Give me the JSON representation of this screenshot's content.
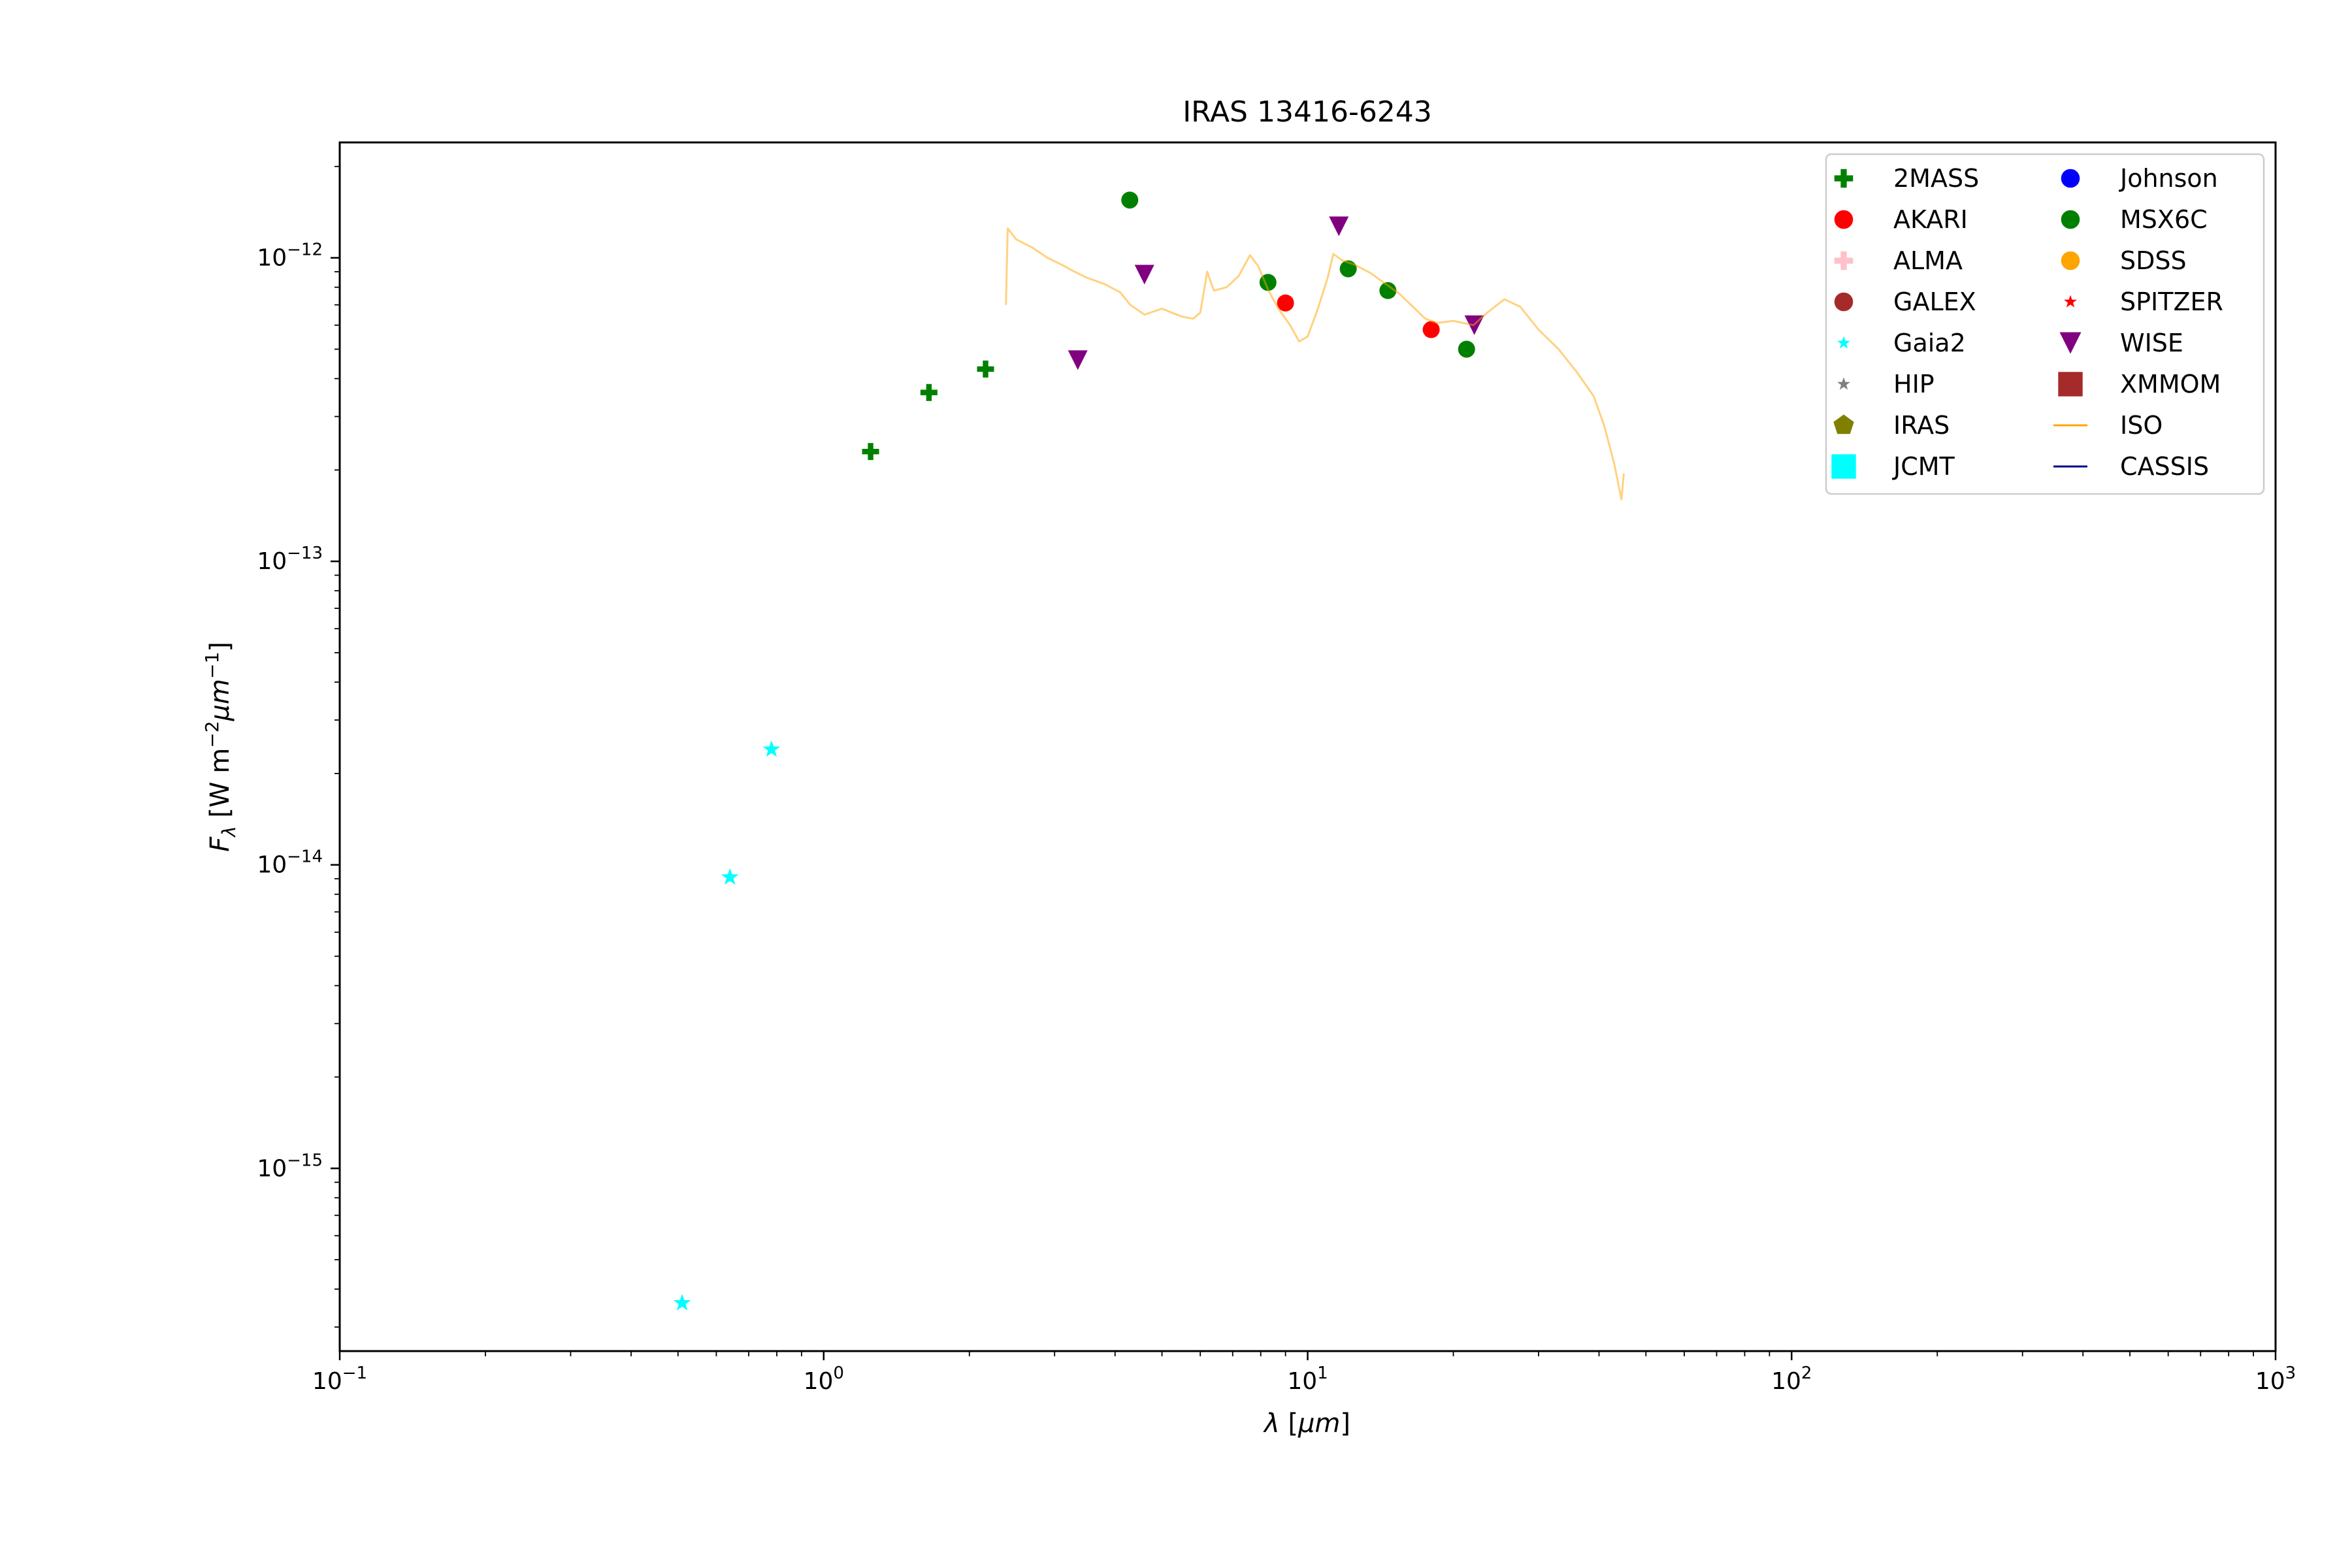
{
  "chart_data": {
    "type": "scatter",
    "title": "IRAS 13416-6243",
    "xlabel": "λ [μm]",
    "ylabel": "F_λ [W m^-2 μm^-1]",
    "xscale": "log",
    "yscale": "log",
    "xlim": [
      0.1,
      1000
    ],
    "ylim": [
      2.5e-16,
      2.4e-12
    ],
    "grid": false,
    "legend_position": "upper right",
    "x_ticks": [
      {
        "base": "10",
        "exp": "−1",
        "value": 0.1
      },
      {
        "base": "10",
        "exp": "0",
        "value": 1
      },
      {
        "base": "10",
        "exp": "1",
        "value": 10
      },
      {
        "base": "10",
        "exp": "2",
        "value": 100
      },
      {
        "base": "10",
        "exp": "3",
        "value": 1000
      }
    ],
    "y_ticks": [
      {
        "base": "10",
        "exp": "−12",
        "value": 1e-12
      },
      {
        "base": "10",
        "exp": "−13",
        "value": 1e-13
      },
      {
        "base": "10",
        "exp": "−14",
        "value": 1e-14
      },
      {
        "base": "10",
        "exp": "−15",
        "value": 1e-15
      }
    ],
    "series": [
      {
        "name": "2MASS",
        "marker": "plus",
        "color": "#008000",
        "points": [
          [
            1.25,
            2.3e-13
          ],
          [
            1.65,
            3.6e-13
          ],
          [
            2.16,
            4.3e-13
          ]
        ]
      },
      {
        "name": "AKARI",
        "marker": "circle",
        "color": "#ff0000",
        "points": [
          [
            9.0,
            7.1e-13
          ],
          [
            18.0,
            5.8e-13
          ]
        ]
      },
      {
        "name": "ALMA",
        "marker": "plus",
        "color": "#ffc0cb",
        "points": []
      },
      {
        "name": "GALEX",
        "marker": "circle",
        "color": "#a52a2a",
        "points": []
      },
      {
        "name": "Gaia2",
        "marker": "star",
        "color": "#00ffff",
        "points": [
          [
            0.51,
            3.6e-16
          ],
          [
            0.64,
            9.1e-15
          ],
          [
            0.78,
            2.4e-14
          ]
        ]
      },
      {
        "name": "HIP",
        "marker": "star",
        "color": "#808080",
        "points": []
      },
      {
        "name": "IRAS",
        "marker": "pentagon",
        "color": "#808000",
        "points": []
      },
      {
        "name": "JCMT",
        "marker": "square",
        "color": "#00ffff",
        "points": []
      },
      {
        "name": "Johnson",
        "marker": "circle",
        "color": "#0000ff",
        "points": []
      },
      {
        "name": "MSX6C",
        "marker": "circle",
        "color": "#008000",
        "points": [
          [
            4.29,
            1.55e-12
          ],
          [
            8.28,
            8.3e-13
          ],
          [
            12.13,
            9.2e-13
          ],
          [
            14.65,
            7.8e-13
          ],
          [
            21.3,
            5e-13
          ]
        ]
      },
      {
        "name": "SDSS",
        "marker": "circle",
        "color": "#ffa500",
        "points": []
      },
      {
        "name": "SPITZER",
        "marker": "star",
        "color": "#ff0000",
        "points": []
      },
      {
        "name": "WISE",
        "marker": "triangle-down",
        "color": "#800080",
        "points": [
          [
            3.35,
            4.6e-13
          ],
          [
            4.6,
            8.8e-13
          ],
          [
            11.6,
            1.27e-12
          ],
          [
            22.1,
            6e-13
          ]
        ]
      },
      {
        "name": "XMMOM",
        "marker": "square",
        "color": "#a52a2a",
        "points": []
      },
      {
        "name": "ISO",
        "marker": "line",
        "color": "#ffa500",
        "points": [
          [
            2.38,
            7e-13
          ],
          [
            2.4,
            1.25e-12
          ],
          [
            2.5,
            1.15e-12
          ],
          [
            2.7,
            1.08e-12
          ],
          [
            2.9,
            1e-12
          ],
          [
            3.1,
            9.5e-13
          ],
          [
            3.3,
            9e-13
          ],
          [
            3.5,
            8.6e-13
          ],
          [
            3.8,
            8.2e-13
          ],
          [
            4.1,
            7.7e-13
          ],
          [
            4.3,
            7e-13
          ],
          [
            4.6,
            6.5e-13
          ],
          [
            5.0,
            6.8e-13
          ],
          [
            5.5,
            6.4e-13
          ],
          [
            5.8,
            6.3e-13
          ],
          [
            6.0,
            6.6e-13
          ],
          [
            6.2,
            9e-13
          ],
          [
            6.4,
            7.8e-13
          ],
          [
            6.8,
            8e-13
          ],
          [
            7.2,
            8.7e-13
          ],
          [
            7.6,
            1.02e-12
          ],
          [
            7.9,
            9.4e-13
          ],
          [
            8.3,
            7.8e-13
          ],
          [
            8.7,
            6.8e-13
          ],
          [
            9.2,
            6e-13
          ],
          [
            9.6,
            5.3e-13
          ],
          [
            10.0,
            5.5e-13
          ],
          [
            10.5,
            6.8e-13
          ],
          [
            11.0,
            8.6e-13
          ],
          [
            11.3,
            1.03e-12
          ],
          [
            11.8,
            9.8e-13
          ],
          [
            12.5,
            9.5e-13
          ],
          [
            13.5,
            8.9e-13
          ],
          [
            14.5,
            8.2e-13
          ],
          [
            15.5,
            7.6e-13
          ],
          [
            16.5,
            6.9e-13
          ],
          [
            17.5,
            6.3e-13
          ],
          [
            18.5,
            6.1e-13
          ],
          [
            20.0,
            6.2e-13
          ],
          [
            22.0,
            6e-13
          ],
          [
            23.5,
            6.6e-13
          ],
          [
            25.5,
            7.3e-13
          ],
          [
            27.5,
            6.9e-13
          ],
          [
            30.0,
            5.8e-13
          ],
          [
            33.0,
            5e-13
          ],
          [
            36.0,
            4.2e-13
          ],
          [
            39.0,
            3.5e-13
          ],
          [
            41.0,
            2.8e-13
          ],
          [
            43.0,
            2.1e-13
          ],
          [
            44.5,
            1.6e-13
          ],
          [
            45.0,
            1.95e-13
          ]
        ]
      },
      {
        "name": "CASSIS",
        "marker": "line",
        "color": "#00008b",
        "points": []
      }
    ]
  }
}
